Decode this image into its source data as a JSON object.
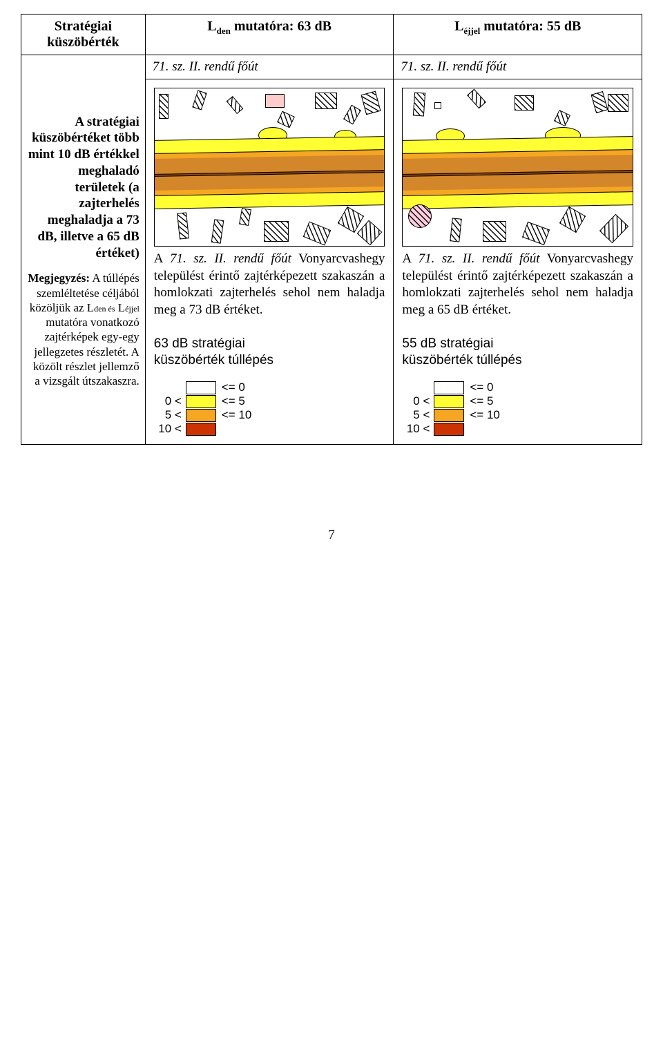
{
  "header": {
    "col1_line1": "Stratégiai",
    "col1_line2": "küszöbérték",
    "col2_prefix": "L",
    "col2_sub": "den",
    "col2_rest": " mutatóra: 63 dB",
    "col3_prefix": "L",
    "col3_sub": "éjjel",
    "col3_rest": " mutatóra: 55 dB"
  },
  "row2": {
    "left": "71. sz. II. rendű főút",
    "right": "71. sz. II. rendű főút"
  },
  "left_block": {
    "bold": "A stratégiai küszöbértéket több mint 10 dB értékkel meghaladó területek (a zajterhelés meghaladja a 73 dB, illetve a 65 dB értéket)",
    "note_label": "Megjegyzés:",
    "note_rest": " A túllépés szemléltetése céljából közöljük az L",
    "note_sub1": "den és",
    "note_mid": " L",
    "note_sub2": "éjjel",
    "note_tail": " mutatóra vonatkozó zajtérképek egy-egy jellegzetes részletét. A közölt részlet jellemző a vizsgált útszakaszra."
  },
  "mid": {
    "para_pre": "A ",
    "para_road": "71. sz. II. rendű főút",
    "para_post": " Vonyarcvashegy települést érintő zajtérképezett szakaszán a homlokzati zajterhelés sehol nem haladja meg a 73 dB értéket.",
    "legend_title_l1": "63 dB stratégiai",
    "legend_title_l2": "küszöbérték túllépés"
  },
  "right": {
    "para_pre": "A ",
    "para_road": "71. sz. II. rendű főút",
    "para_post": " Vonyarcvashegy települést érintő zajtérképezett szakaszán a homlokzati zajterhelés sehol nem haladja meg a 65 dB értéket.",
    "legend_title_l1": "55 dB stratégiai",
    "legend_title_l2": "küszöbérték túllépés"
  },
  "legend": {
    "rows": [
      {
        "before": "",
        "color": "#ffffff",
        "after": "<=   0"
      },
      {
        "before": "0 <",
        "color": "#ffff33",
        "after": "<=   5"
      },
      {
        "before": "5 <",
        "color": "#f5a623",
        "after": "<=  10"
      },
      {
        "before": "10 <",
        "color": "#cc3300",
        "after": ""
      }
    ]
  },
  "map_colors": {
    "yellow": "#ffff33",
    "orange": "#f5a623",
    "dark_orange": "#d4872a",
    "brown": "#8b4513"
  },
  "page_number": "7"
}
